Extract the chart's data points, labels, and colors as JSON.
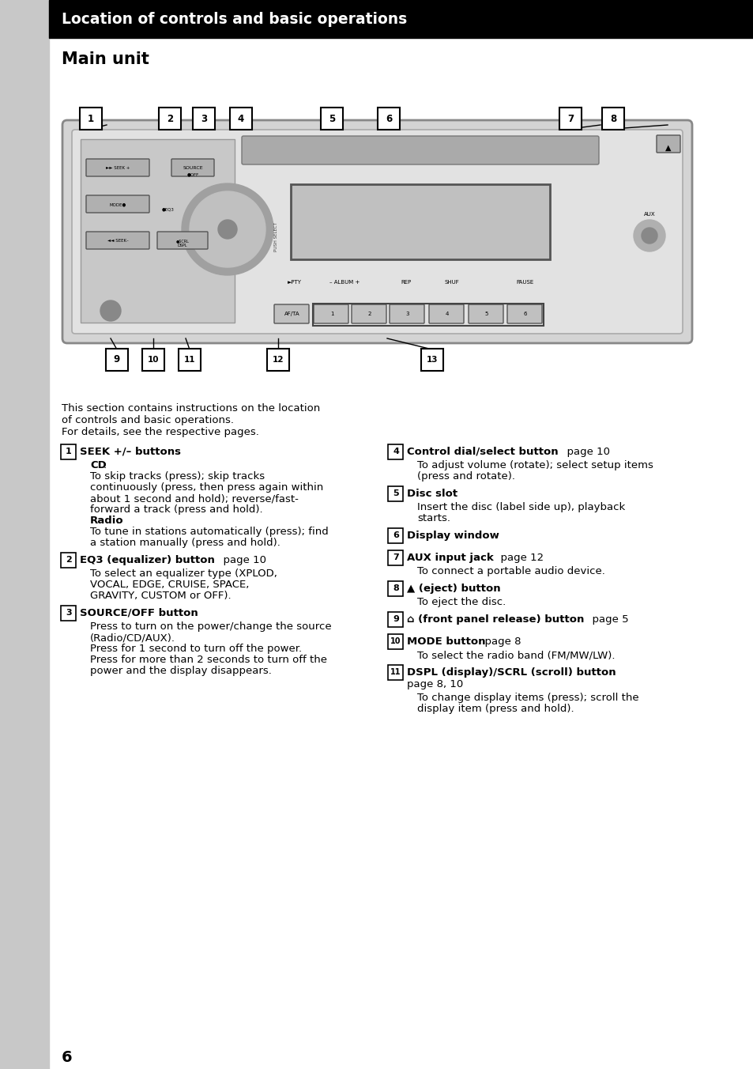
{
  "bg_color": "#ffffff",
  "sidebar_color": "#c8c8c8",
  "header_bg": "#000000",
  "header_text": "Location of controls and basic operations",
  "header_text_color": "#ffffff",
  "section_title": "Main unit",
  "page_number": "6",
  "intro_text": "This section contains instructions on the location\nof controls and basic operations.\nFor details, see the respective pages."
}
